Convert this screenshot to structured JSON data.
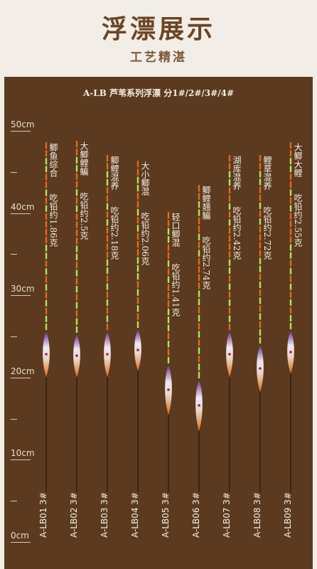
{
  "header": {
    "title": "浮漂展示",
    "subtitle": "工艺精湛"
  },
  "panel": {
    "series_text": "A-LB 芦苇系列浮漂 分1#/2#/3#/4#"
  },
  "scale": {
    "labels": [
      "50cm",
      "40cm",
      "30cm",
      "20cm",
      "10cm",
      "0cm"
    ]
  },
  "floats": [
    {
      "name": "鲫鱼综合",
      "weight": "吃铅约1.86克",
      "model": "A-LB01 3#"
    },
    {
      "name": "大鲫鲤鳊",
      "weight": "吃铅约2.5克",
      "model": "A-LB02 3#"
    },
    {
      "name": "鲫鲤混养",
      "weight": "吃铅约2.18克",
      "model": "A-LB03 3#"
    },
    {
      "name": "大小鲫混",
      "weight": "吃铅约2.06克",
      "model": "A-LB04 3#"
    },
    {
      "name": "轻口鲫混",
      "weight": "吃铅约1.41克",
      "model": "A-LB05 3#"
    },
    {
      "name": "鲫鲤翘鳊",
      "weight": "吃铅约2.74克",
      "model": "A-LB06 3#"
    },
    {
      "name": "湖库混养",
      "weight": "吃铅约2.42克",
      "model": "A-LB07 3#"
    },
    {
      "name": "鲤草混养",
      "weight": "吃铅约2.72克",
      "model": "A-LB08 3#"
    },
    {
      "name": "大鲫大鲤",
      "weight": "吃铅约2.55克",
      "model": "A-LB09 3#"
    }
  ],
  "colors": {
    "background": "#5b3a1f",
    "accent_orange": "#e06a1a",
    "accent_green": "#b9e05a",
    "body_purple": "#6b2b84"
  }
}
